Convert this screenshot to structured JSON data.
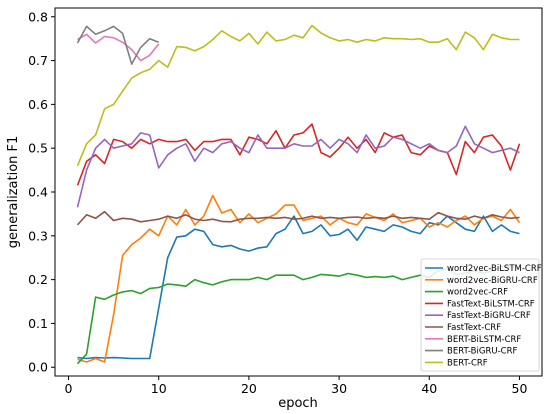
{
  "chart_data": {
    "type": "line",
    "xlabel": "epoch",
    "ylabel": "generalization F1",
    "xlim": [
      -1.5,
      52.5
    ],
    "ylim": [
      -0.02,
      0.82
    ],
    "x_ticks": [
      0,
      10,
      20,
      30,
      40,
      50
    ],
    "y_ticks": [
      0.0,
      0.1,
      0.2,
      0.3,
      0.4,
      0.5,
      0.6,
      0.7,
      0.8
    ],
    "x_tick_labels": [
      "0",
      "10",
      "20",
      "30",
      "40",
      "50"
    ],
    "y_tick_labels": [
      "0.0",
      "0.1",
      "0.2",
      "0.3",
      "0.4",
      "0.5",
      "0.6",
      "0.7",
      "0.8"
    ],
    "legend_position": "bottom-right",
    "grid": false,
    "series": [
      {
        "name": "word2vec-BiLSTM-CRF",
        "color": "#1f77b4",
        "x": [
          1,
          2,
          3,
          4,
          5,
          6,
          7,
          8,
          9,
          10,
          11,
          12,
          13,
          14,
          15,
          16,
          17,
          18,
          19,
          20,
          21,
          22,
          23,
          24,
          25,
          26,
          27,
          28,
          29,
          30,
          31,
          32,
          33,
          34,
          35,
          36,
          37,
          38,
          39,
          40,
          41,
          42,
          43,
          44,
          45,
          46,
          47,
          48,
          49,
          50
        ],
        "values": [
          0.022,
          0.02,
          0.022,
          0.021,
          0.022,
          0.021,
          0.02,
          0.02,
          0.02,
          0.135,
          0.25,
          0.297,
          0.3,
          0.315,
          0.31,
          0.28,
          0.275,
          0.278,
          0.27,
          0.265,
          0.272,
          0.275,
          0.305,
          0.315,
          0.345,
          0.305,
          0.31,
          0.325,
          0.3,
          0.303,
          0.315,
          0.29,
          0.32,
          0.315,
          0.31,
          0.325,
          0.32,
          0.31,
          0.305,
          0.33,
          0.325,
          0.345,
          0.33,
          0.315,
          0.31,
          0.345,
          0.31,
          0.325,
          0.31,
          0.305
        ]
      },
      {
        "name": "word2vec-BiGRU-CRF",
        "color": "#ff7f0e",
        "x": [
          1,
          2,
          3,
          4,
          5,
          6,
          7,
          8,
          9,
          10,
          11,
          12,
          13,
          14,
          15,
          16,
          17,
          18,
          19,
          20,
          21,
          22,
          23,
          24,
          25,
          26,
          27,
          28,
          29,
          30,
          31,
          32,
          33,
          34,
          35,
          36,
          37,
          38,
          39,
          40,
          41,
          42,
          43,
          44,
          45,
          46,
          47,
          48,
          49,
          50
        ],
        "values": [
          0.018,
          0.012,
          0.02,
          0.012,
          0.12,
          0.255,
          0.28,
          0.295,
          0.315,
          0.3,
          0.345,
          0.325,
          0.36,
          0.325,
          0.345,
          0.392,
          0.352,
          0.36,
          0.33,
          0.35,
          0.33,
          0.34,
          0.35,
          0.37,
          0.37,
          0.335,
          0.34,
          0.345,
          0.325,
          0.34,
          0.33,
          0.325,
          0.35,
          0.342,
          0.335,
          0.35,
          0.33,
          0.335,
          0.34,
          0.32,
          0.33,
          0.32,
          0.335,
          0.345,
          0.325,
          0.34,
          0.345,
          0.335,
          0.36,
          0.33
        ]
      },
      {
        "name": "word2vec-CRF",
        "color": "#2ca02c",
        "x": [
          1,
          2,
          3,
          4,
          5,
          6,
          7,
          8,
          9,
          10,
          11,
          12,
          13,
          14,
          15,
          16,
          17,
          18,
          19,
          20,
          21,
          22,
          23,
          24,
          25,
          26,
          27,
          28,
          29,
          30,
          31,
          32,
          33,
          34,
          35,
          36,
          37,
          38,
          39,
          40,
          41,
          42,
          43,
          44,
          45,
          46,
          47,
          48,
          49,
          50
        ],
        "values": [
          0.008,
          0.03,
          0.16,
          0.155,
          0.165,
          0.172,
          0.175,
          0.168,
          0.18,
          0.182,
          0.19,
          0.188,
          0.185,
          0.2,
          0.193,
          0.188,
          0.195,
          0.2,
          0.2,
          0.2,
          0.205,
          0.2,
          0.21,
          0.21,
          0.21,
          0.2,
          0.205,
          0.212,
          0.21,
          0.208,
          0.214,
          0.21,
          0.205,
          0.207,
          0.205,
          0.208,
          0.2,
          0.205,
          0.21,
          0.205,
          0.22,
          0.225,
          0.212,
          0.215,
          0.22,
          0.215,
          0.22,
          0.23,
          0.228,
          0.228
        ]
      },
      {
        "name": "FastText-BiLSTM-CRF",
        "color": "#d62728",
        "x": [
          1,
          2,
          3,
          4,
          5,
          6,
          7,
          8,
          9,
          10,
          11,
          12,
          13,
          14,
          15,
          16,
          17,
          18,
          19,
          20,
          21,
          22,
          23,
          24,
          25,
          26,
          27,
          28,
          29,
          30,
          31,
          32,
          33,
          34,
          35,
          36,
          37,
          38,
          39,
          40,
          41,
          42,
          43,
          44,
          45,
          46,
          47,
          48,
          49,
          50
        ],
        "values": [
          0.415,
          0.47,
          0.485,
          0.465,
          0.52,
          0.515,
          0.5,
          0.52,
          0.51,
          0.52,
          0.515,
          0.515,
          0.52,
          0.495,
          0.515,
          0.515,
          0.52,
          0.52,
          0.485,
          0.525,
          0.52,
          0.51,
          0.54,
          0.5,
          0.53,
          0.535,
          0.555,
          0.49,
          0.48,
          0.5,
          0.525,
          0.5,
          0.52,
          0.49,
          0.535,
          0.525,
          0.53,
          0.49,
          0.485,
          0.505,
          0.495,
          0.49,
          0.44,
          0.515,
          0.49,
          0.525,
          0.53,
          0.505,
          0.45,
          0.51
        ]
      },
      {
        "name": "FastText-BiGRU-CRF",
        "color": "#9467bd",
        "x": [
          1,
          2,
          3,
          4,
          5,
          6,
          7,
          8,
          9,
          10,
          11,
          12,
          13,
          14,
          15,
          16,
          17,
          18,
          19,
          20,
          21,
          22,
          23,
          24,
          25,
          26,
          27,
          28,
          29,
          30,
          31,
          32,
          33,
          34,
          35,
          36,
          37,
          38,
          39,
          40,
          41,
          42,
          43,
          44,
          45,
          46,
          47,
          48,
          49,
          50
        ],
        "values": [
          0.365,
          0.45,
          0.5,
          0.52,
          0.5,
          0.505,
          0.51,
          0.535,
          0.53,
          0.455,
          0.485,
          0.5,
          0.51,
          0.47,
          0.5,
          0.49,
          0.51,
          0.515,
          0.5,
          0.49,
          0.53,
          0.5,
          0.5,
          0.5,
          0.51,
          0.505,
          0.505,
          0.52,
          0.5,
          0.52,
          0.51,
          0.49,
          0.53,
          0.5,
          0.505,
          0.525,
          0.52,
          0.51,
          0.5,
          0.51,
          0.495,
          0.49,
          0.505,
          0.55,
          0.51,
          0.5,
          0.49,
          0.495,
          0.5,
          0.49
        ]
      },
      {
        "name": "FastText-CRF",
        "color": "#8c564b",
        "x": [
          1,
          2,
          3,
          4,
          5,
          6,
          7,
          8,
          9,
          10,
          11,
          12,
          13,
          14,
          15,
          16,
          17,
          18,
          19,
          20,
          21,
          22,
          23,
          24,
          25,
          26,
          27,
          28,
          29,
          30,
          31,
          32,
          33,
          34,
          35,
          36,
          37,
          38,
          39,
          40,
          41,
          42,
          43,
          44,
          45,
          46,
          47,
          48,
          49,
          50
        ],
        "values": [
          0.325,
          0.348,
          0.34,
          0.355,
          0.335,
          0.34,
          0.338,
          0.332,
          0.335,
          0.338,
          0.345,
          0.34,
          0.348,
          0.338,
          0.335,
          0.338,
          0.333,
          0.332,
          0.338,
          0.34,
          0.34,
          0.342,
          0.34,
          0.342,
          0.338,
          0.34,
          0.345,
          0.34,
          0.342,
          0.34,
          0.342,
          0.343,
          0.34,
          0.342,
          0.34,
          0.345,
          0.34,
          0.342,
          0.34,
          0.338,
          0.353,
          0.345,
          0.34,
          0.338,
          0.345,
          0.34,
          0.348,
          0.343,
          0.34,
          0.342
        ]
      },
      {
        "name": "BERT-BiLSTM-CRF",
        "color": "#e377c2",
        "x": [
          1,
          2,
          3,
          4,
          5,
          6,
          7,
          8,
          9,
          10
        ],
        "values": [
          0.748,
          0.76,
          0.74,
          0.755,
          0.752,
          0.742,
          0.725,
          0.7,
          0.712,
          0.738
        ]
      },
      {
        "name": "BERT-BiGRU-CRF",
        "color": "#7f7f7f",
        "x": [
          1,
          2,
          3,
          4,
          5,
          6,
          7,
          8,
          9,
          10
        ],
        "values": [
          0.74,
          0.778,
          0.76,
          0.768,
          0.778,
          0.762,
          0.692,
          0.73,
          0.75,
          0.742
        ]
      },
      {
        "name": "BERT-CRF",
        "color": "#bcbd22",
        "x": [
          1,
          2,
          3,
          4,
          5,
          6,
          7,
          8,
          9,
          10,
          11,
          12,
          13,
          14,
          15,
          16,
          17,
          18,
          19,
          20,
          21,
          22,
          23,
          24,
          25,
          26,
          27,
          28,
          29,
          30,
          31,
          32,
          33,
          34,
          35,
          36,
          37,
          38,
          39,
          40,
          41,
          42,
          43,
          44,
          45,
          46,
          47,
          48,
          49,
          50
        ],
        "values": [
          0.46,
          0.51,
          0.53,
          0.59,
          0.6,
          0.63,
          0.66,
          0.672,
          0.68,
          0.7,
          0.685,
          0.732,
          0.73,
          0.722,
          0.732,
          0.748,
          0.768,
          0.755,
          0.745,
          0.762,
          0.738,
          0.765,
          0.745,
          0.748,
          0.758,
          0.752,
          0.78,
          0.763,
          0.752,
          0.745,
          0.748,
          0.742,
          0.748,
          0.745,
          0.752,
          0.75,
          0.75,
          0.748,
          0.75,
          0.742,
          0.742,
          0.75,
          0.725,
          0.765,
          0.752,
          0.725,
          0.76,
          0.752,
          0.748,
          0.748
        ]
      }
    ]
  }
}
